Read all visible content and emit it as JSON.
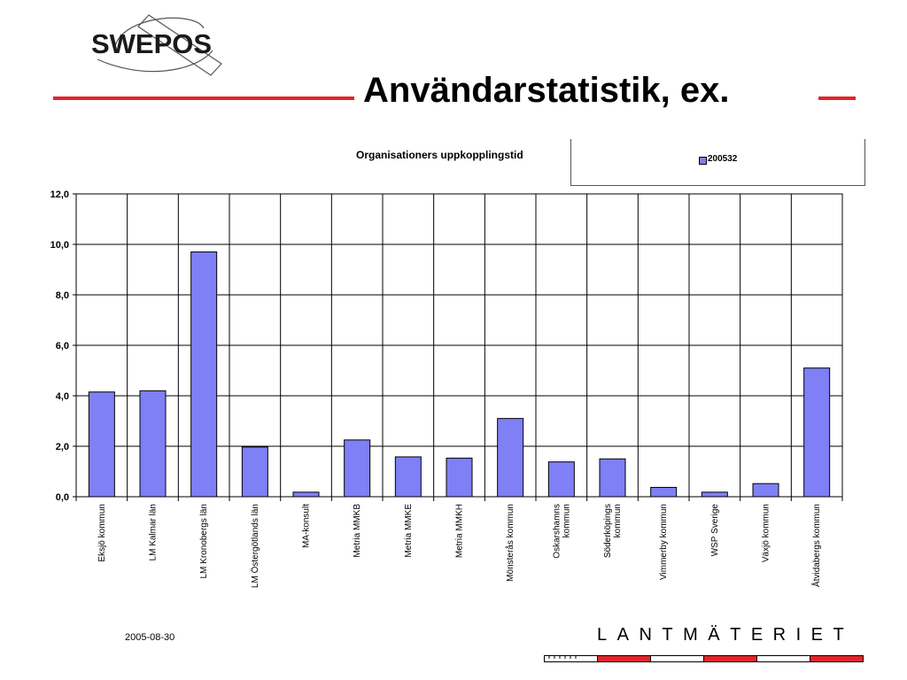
{
  "logo": {
    "text": "SWEPOS"
  },
  "slide_title": "Användarstatistik, ex.",
  "footer": {
    "date": "2005-08-30",
    "brand": "LANTMÄTERIET"
  },
  "colors": {
    "accent_red": "#e1262c",
    "bar_fill": "#7f7ff6"
  },
  "chart_data": {
    "type": "bar",
    "title": "Organisationers uppkopplingstid",
    "xlabel": "",
    "ylabel": "",
    "ylim": [
      0,
      12
    ],
    "yticks": [
      "0,0",
      "2,0",
      "4,0",
      "6,0",
      "8,0",
      "10,0",
      "12,0"
    ],
    "grid": true,
    "legend_position": "top-right",
    "categories": [
      [
        "Eksjö kommun"
      ],
      [
        "LM Kalmar län"
      ],
      [
        "LM Kronobergs län"
      ],
      [
        "LM Östergötlands län"
      ],
      [
        "MA-konsult"
      ],
      [
        "Metria MMKB"
      ],
      [
        "Metria MMKE"
      ],
      [
        "Metria MMKH"
      ],
      [
        "Mönsterås kommun"
      ],
      [
        "Oskarshamns",
        "kommun"
      ],
      [
        "Söderköpings",
        "kommun"
      ],
      [
        "Vimmerby kommun"
      ],
      [
        "WSP Sverige"
      ],
      [
        "Växjö kommun"
      ],
      [
        "Åtvidabergs kommun"
      ]
    ],
    "series": [
      {
        "name": "200532",
        "values": [
          4.15,
          4.2,
          9.7,
          1.97,
          0.18,
          2.25,
          1.58,
          1.53,
          3.1,
          1.38,
          1.5,
          0.37,
          0.18,
          0.52,
          5.1
        ]
      }
    ]
  }
}
